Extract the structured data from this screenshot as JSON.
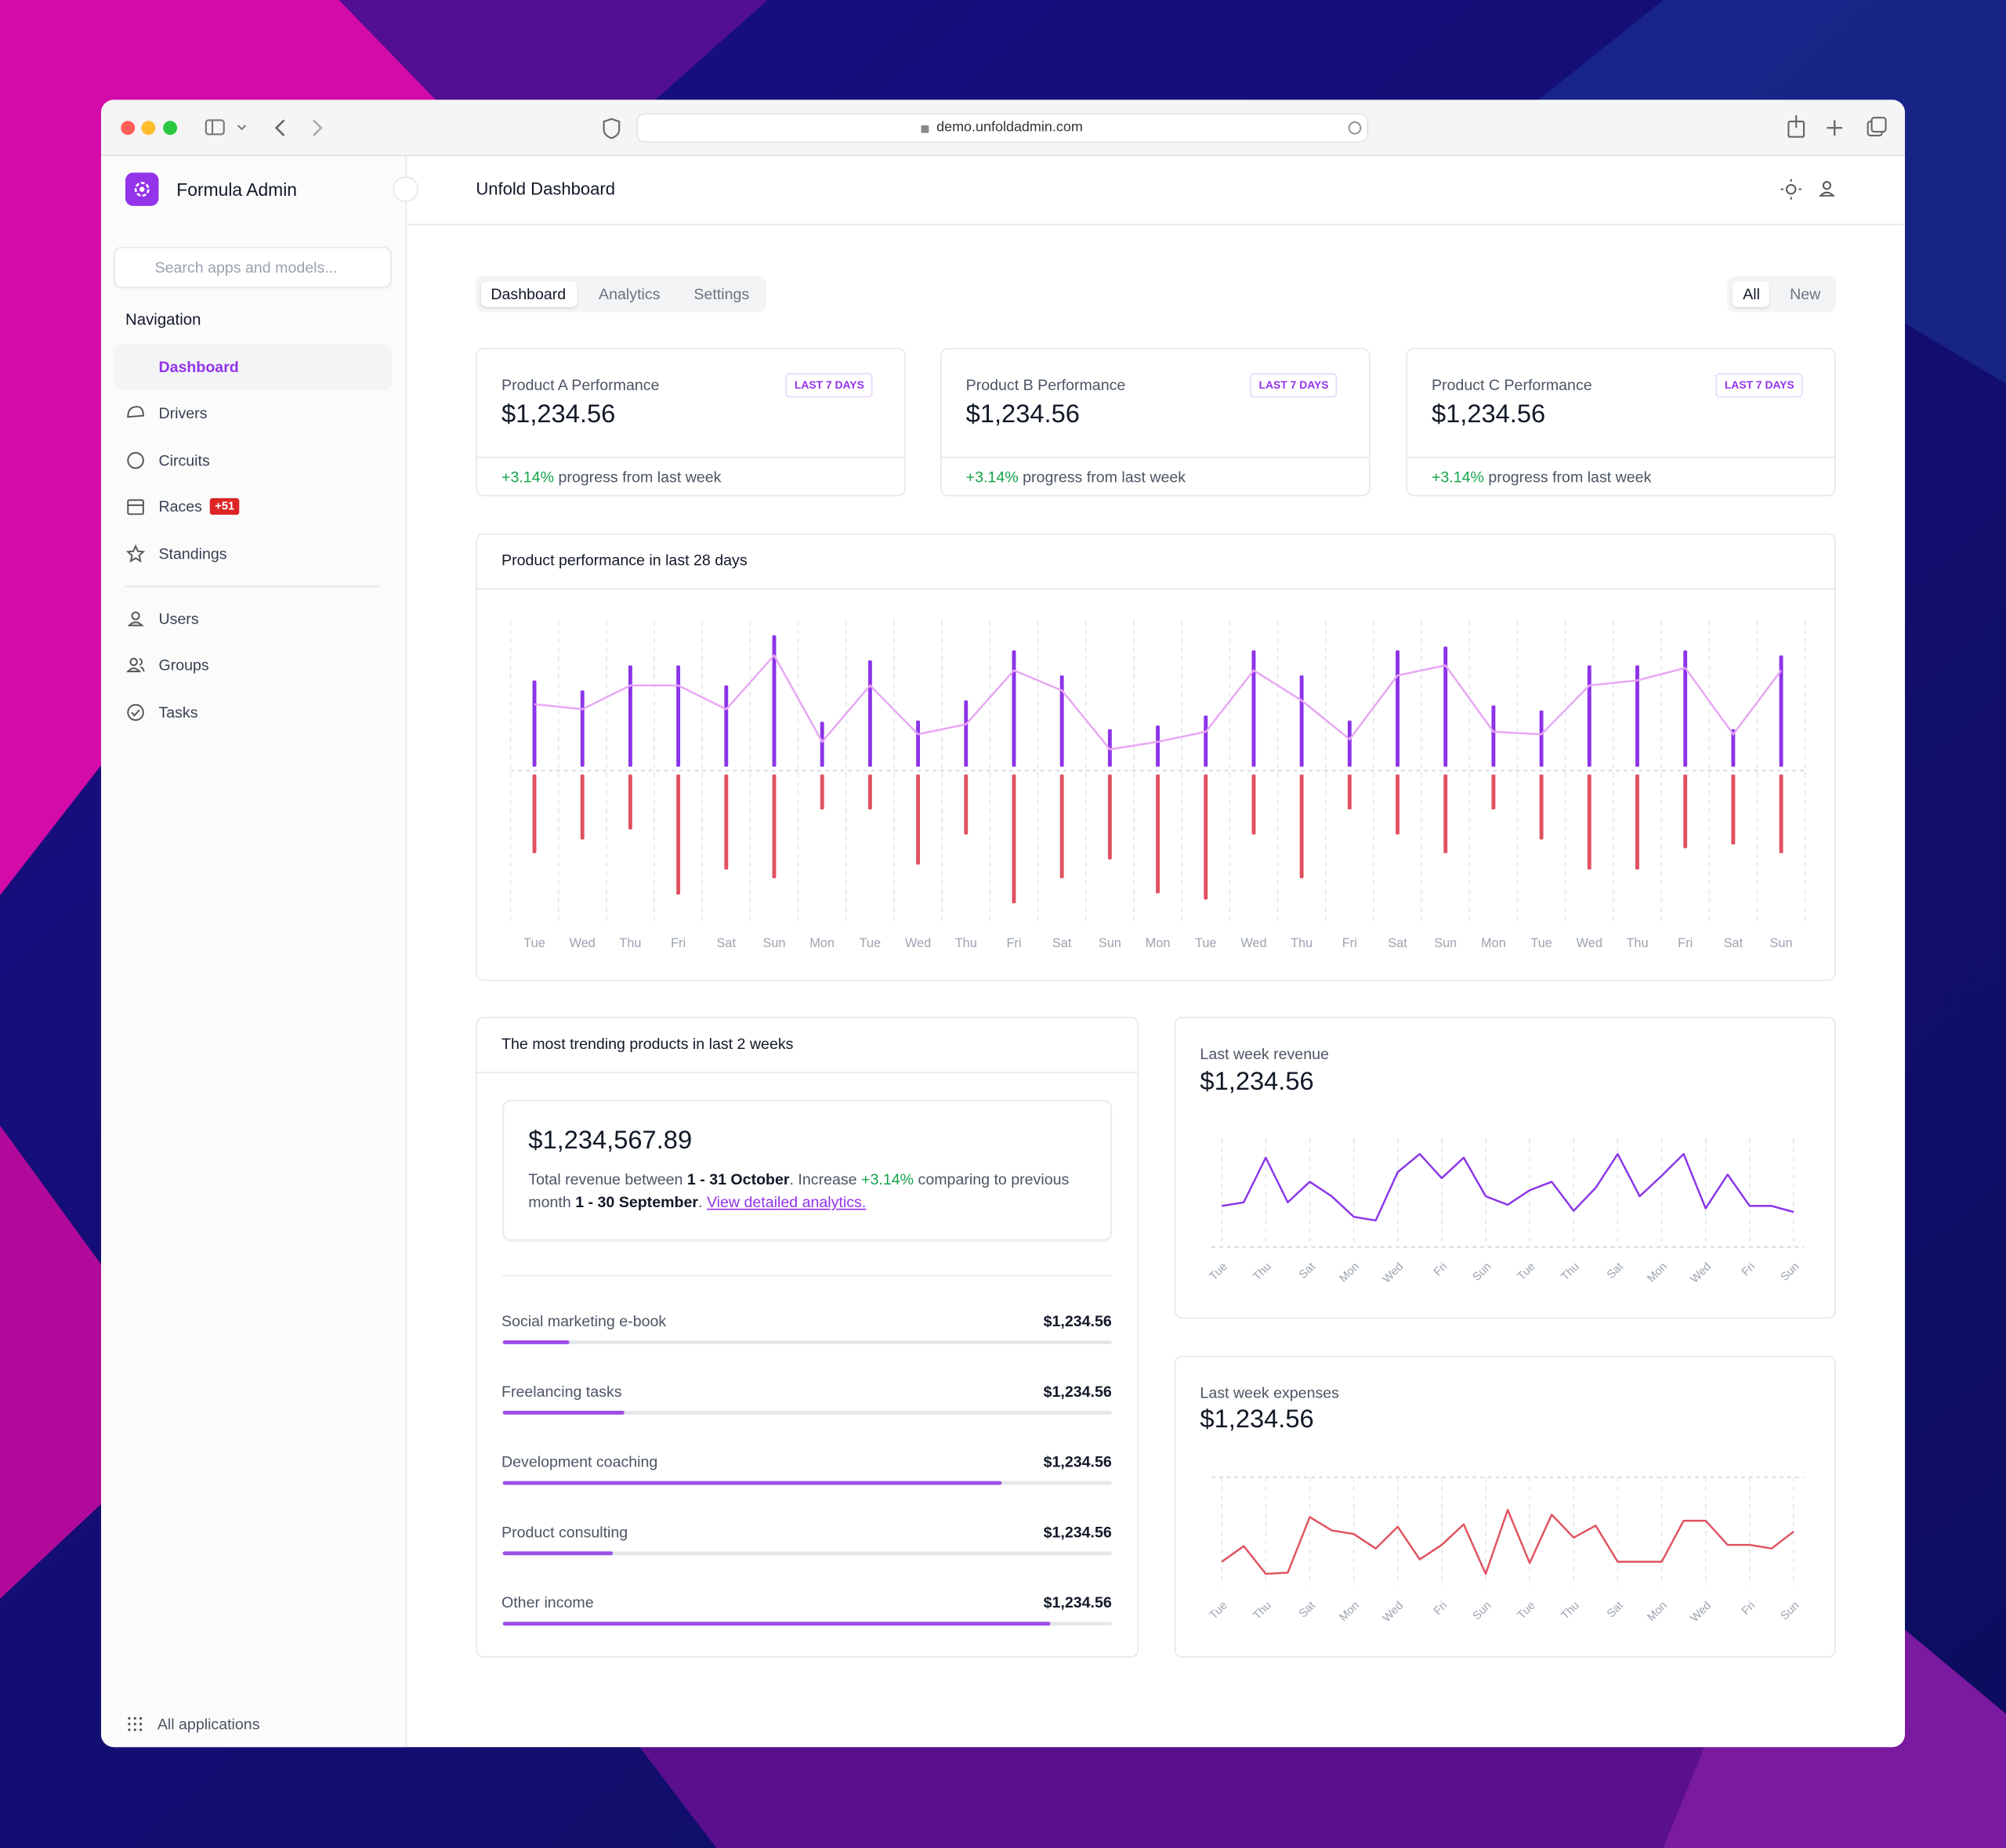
{
  "browser": {
    "url": "demo.unfoldadmin.com"
  },
  "sidebar": {
    "brand": "Formula Admin",
    "search_placeholder": "Search apps and models...",
    "nav_heading": "Navigation",
    "items": [
      {
        "label": "Dashboard"
      },
      {
        "label": "Drivers"
      },
      {
        "label": "Circuits"
      },
      {
        "label": "Races",
        "badge": "+51"
      },
      {
        "label": "Standings"
      }
    ],
    "items_secondary": [
      {
        "label": "Users"
      },
      {
        "label": "Groups"
      },
      {
        "label": "Tasks"
      }
    ],
    "footer": "All applications"
  },
  "header": {
    "title": "Unfold Dashboard"
  },
  "tabs": [
    "Dashboard",
    "Analytics",
    "Settings"
  ],
  "filters": [
    "All",
    "New"
  ],
  "kpis": [
    {
      "title": "Product A Performance",
      "badge": "LAST 7 DAYS",
      "value": "$1,234.56",
      "change": "+3.14%",
      "note": "progress from last week"
    },
    {
      "title": "Product B Performance",
      "badge": "LAST 7 DAYS",
      "value": "$1,234.56",
      "change": "+3.14%",
      "note": "progress from last week"
    },
    {
      "title": "Product C Performance",
      "badge": "LAST 7 DAYS",
      "value": "$1,234.56",
      "change": "+3.14%",
      "note": "progress from last week"
    }
  ],
  "chart_data": [
    {
      "type": "bar",
      "title": "Product performance in last 28 days",
      "categories": [
        "Tue",
        "Wed",
        "Thu",
        "Fri",
        "Sat",
        "Sun",
        "Mon",
        "Tue",
        "Wed",
        "Thu",
        "Fri",
        "Sat",
        "Sun",
        "Mon",
        "Tue",
        "Wed",
        "Thu",
        "Fri",
        "Sat",
        "Sun",
        "Mon",
        "Tue",
        "Wed",
        "Thu",
        "Fri",
        "Sat",
        "Sun"
      ],
      "series": [
        {
          "color": "#8b34e8",
          "values": [
            72,
            64,
            84,
            84,
            68,
            108,
            39,
            88,
            40,
            56,
            96,
            76,
            33,
            36,
            44,
            96,
            76,
            40,
            96,
            99,
            52,
            48,
            84,
            84,
            96,
            33,
            92
          ]
        },
        {
          "color": "#e0525f",
          "values": [
            -66,
            -55,
            -47,
            -99,
            -79,
            -86,
            -31,
            -31,
            -75,
            -51,
            -106,
            -86,
            -71,
            -98,
            -103,
            -51,
            -86,
            -31,
            -51,
            -66,
            -31,
            -55,
            -79,
            -79,
            -62,
            -59,
            -66
          ]
        },
        {
          "type": "line",
          "color": "#e7a6f4",
          "values": [
            53,
            49,
            68,
            68,
            49,
            92,
            23,
            68,
            29,
            37,
            80,
            64,
            17,
            23,
            31,
            80,
            56,
            25,
            76,
            84,
            31,
            29,
            68,
            72,
            82,
            29,
            80
          ]
        }
      ],
      "ylim": [
        -120,
        120
      ],
      "yticks": [
        0
      ],
      "grid": true
    },
    {
      "type": "line",
      "title": "Last week revenue",
      "total": "$1,234.56",
      "categories": [
        "Tue",
        null,
        "Thu",
        null,
        "Sat",
        null,
        "Mon",
        null,
        "Wed",
        null,
        "Fri",
        null,
        "Sun",
        null,
        "Tue",
        null,
        "Thu",
        null,
        "Sat",
        null,
        "Mon",
        null,
        "Wed",
        null,
        "Fri",
        null,
        "Sun"
      ],
      "series": [
        {
          "color": "#8b34e8",
          "values": [
            34,
            37,
            74,
            37,
            54,
            42,
            25,
            22,
            62,
            77,
            57,
            74,
            42,
            35,
            47,
            54,
            30,
            49,
            77,
            42,
            59,
            77,
            32,
            60,
            34,
            34,
            29
          ]
        }
      ],
      "ylim": [
        0,
        90
      ],
      "yticks": [
        0
      ],
      "grid": true
    },
    {
      "type": "line",
      "title": "Last week expenses",
      "total": "$1,234.56",
      "categories": [
        "Tue",
        null,
        "Thu",
        null,
        "Sat",
        null,
        "Mon",
        null,
        "Wed",
        null,
        "Fri",
        null,
        "Sun",
        null,
        "Tue",
        null,
        "Thu",
        null,
        "Sat",
        null,
        "Mon",
        null,
        "Wed",
        null,
        "Fri",
        null,
        "Sun"
      ],
      "series": [
        {
          "color": "#e0525f",
          "values": [
            20,
            33,
            10,
            11,
            57,
            46,
            43,
            31,
            49,
            22,
            34,
            51,
            10,
            63,
            19,
            59,
            40,
            50,
            20,
            20,
            20,
            54,
            54,
            34,
            34,
            31,
            45
          ]
        }
      ],
      "ylim": [
        0,
        90
      ],
      "yticks": [
        90
      ],
      "grid": true
    }
  ],
  "trending": {
    "title": "The most trending products in last 2 weeks",
    "total": "$1,234,567.89",
    "text_1": "Total revenue between",
    "period": "1 - 31 October",
    "text_2": ". Increase",
    "change": "+3.14%",
    "text_3": "comparing to previous month",
    "previous_period": "1 - 30 September",
    "text_4": ".",
    "link": "View detailed analytics.",
    "items": [
      {
        "name": "Social marketing e-book",
        "value": "$1,234.56",
        "progress": 11
      },
      {
        "name": "Freelancing tasks",
        "value": "$1,234.56",
        "progress": 20
      },
      {
        "name": "Development coaching",
        "value": "$1,234.56",
        "progress": 82
      },
      {
        "name": "Product consulting",
        "value": "$1,234.56",
        "progress": 18
      },
      {
        "name": "Other income",
        "value": "$1,234.56",
        "progress": 90
      }
    ]
  }
}
